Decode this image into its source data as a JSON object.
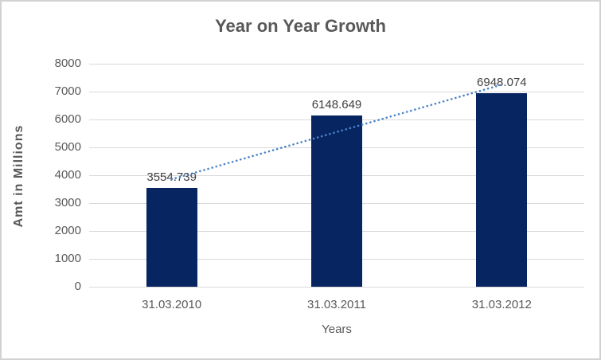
{
  "chart_data": {
    "type": "bar",
    "title": "Year on Year Growth",
    "xlabel": "Years",
    "ylabel": "Amt in Millions",
    "categories": [
      "31.03.2010",
      "31.03.2011",
      "31.03.2012"
    ],
    "series": [
      {
        "name": "Amt in Millions",
        "values": [
          3554.739,
          6148.649,
          6948.074
        ],
        "value_labels": [
          "3554.739",
          "6148.649",
          "6948.074"
        ]
      }
    ],
    "ylim": [
      0,
      8000
    ],
    "ytick_step": 1000,
    "yticks": [
      0,
      1000,
      2000,
      3000,
      4000,
      5000,
      6000,
      7000,
      8000
    ],
    "grid": "horizontal-only",
    "legend_position": "none",
    "trendline": {
      "type": "linear",
      "style": "dotted",
      "start_value": 3853.8,
      "end_value": 7247.2
    },
    "colors": {
      "bar_fill": "#062561",
      "trendline": "#4c85c8",
      "gridline": "#d9d9d9",
      "axis_text": "#595959",
      "data_label_text": "#404040",
      "title_text": "#595959",
      "canvas_border": "#d2d2d2",
      "background": "#ffffff"
    }
  }
}
